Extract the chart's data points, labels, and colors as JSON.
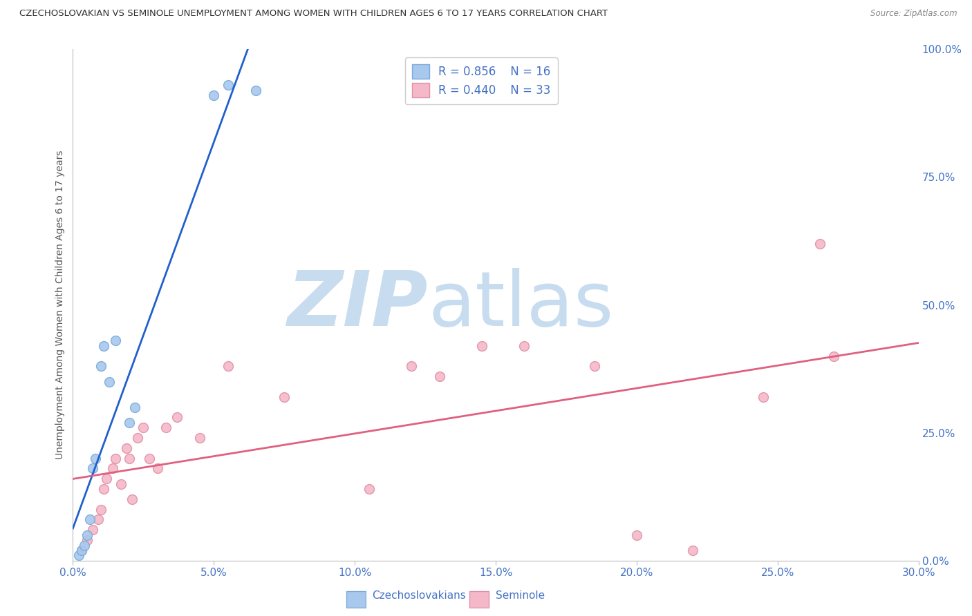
{
  "title": "CZECHOSLOVAKIAN VS SEMINOLE UNEMPLOYMENT AMONG WOMEN WITH CHILDREN AGES 6 TO 17 YEARS CORRELATION CHART",
  "source": "Source: ZipAtlas.com",
  "ylabel": "Unemployment Among Women with Children Ages 6 to 17 years",
  "x_tick_labels": [
    "0.0%",
    "5.0%",
    "10.0%",
    "15.0%",
    "20.0%",
    "25.0%",
    "30.0%"
  ],
  "x_tick_values": [
    0.0,
    5.0,
    10.0,
    15.0,
    20.0,
    25.0,
    30.0
  ],
  "y_right_labels": [
    "100.0%",
    "75.0%",
    "50.0%",
    "25.0%",
    "0.0%"
  ],
  "y_right_values": [
    100.0,
    75.0,
    50.0,
    25.0,
    0.0
  ],
  "xlim": [
    0.0,
    30.0
  ],
  "ylim": [
    0.0,
    100.0
  ],
  "legend_labels": [
    "Czechoslovakians",
    "Seminole"
  ],
  "legend_R": [
    0.856,
    0.44
  ],
  "legend_N": [
    16,
    33
  ],
  "blue_color": "#A8C8EE",
  "pink_color": "#F5B8C8",
  "blue_line_color": "#2060CC",
  "pink_line_color": "#E06080",
  "blue_dot_edge": "#7AAAD8",
  "pink_dot_edge": "#E090A8",
  "watermark_zip": "ZIP",
  "watermark_atlas": "atlas",
  "watermark_color_zip": "#C8DCF0",
  "watermark_color_atlas": "#C8DCF0",
  "czechoslovakian_x": [
    0.2,
    0.3,
    0.4,
    0.5,
    0.6,
    0.7,
    0.8,
    1.0,
    1.1,
    1.3,
    1.5,
    2.0,
    2.2,
    5.0,
    5.5,
    6.5
  ],
  "czechoslovakian_y": [
    1.0,
    2.0,
    3.0,
    5.0,
    8.0,
    18.0,
    20.0,
    38.0,
    42.0,
    35.0,
    43.0,
    27.0,
    30.0,
    91.0,
    93.0,
    92.0
  ],
  "seminole_x": [
    0.3,
    0.5,
    0.7,
    0.9,
    1.0,
    1.1,
    1.2,
    1.4,
    1.5,
    1.7,
    1.9,
    2.0,
    2.1,
    2.3,
    2.5,
    2.7,
    3.0,
    3.3,
    3.7,
    4.5,
    5.5,
    7.5,
    10.5,
    12.0,
    13.0,
    14.5,
    16.0,
    18.5,
    20.0,
    22.0,
    24.5,
    26.5,
    27.0
  ],
  "seminole_y": [
    2.0,
    4.0,
    6.0,
    8.0,
    10.0,
    14.0,
    16.0,
    18.0,
    20.0,
    15.0,
    22.0,
    20.0,
    12.0,
    24.0,
    26.0,
    20.0,
    18.0,
    26.0,
    28.0,
    24.0,
    38.0,
    32.0,
    14.0,
    38.0,
    36.0,
    42.0,
    42.0,
    38.0,
    5.0,
    2.0,
    32.0,
    62.0,
    40.0
  ],
  "dot_size": 100,
  "background_color": "#FFFFFF",
  "grid_color": "#CCCCCC",
  "title_color": "#333333",
  "axis_label_color": "#555555",
  "right_axis_color": "#4472C4",
  "bottom_axis_color": "#4472C4"
}
